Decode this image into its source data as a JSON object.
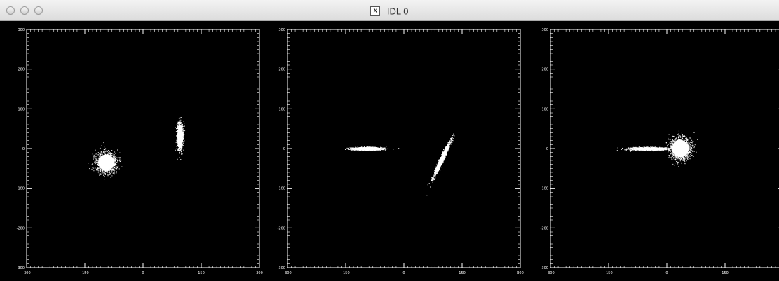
{
  "window": {
    "title": "IDL 0",
    "title_icon": "x11-icon",
    "title_icon_glyph": "X",
    "buttons": [
      "close",
      "minimize",
      "zoom"
    ]
  },
  "colors": {
    "background": "#000000",
    "foreground": "#ffffff",
    "titlebar": "#e6e6e6"
  },
  "chart_data": [
    {
      "type": "scatter",
      "xlim": [
        -300,
        300
      ],
      "ylim": [
        -300,
        300
      ],
      "xticks": [
        -300,
        -150,
        0,
        150,
        300
      ],
      "yticks": [
        -300,
        -200,
        -100,
        0,
        100,
        200,
        300
      ],
      "clusters": [
        {
          "shape": "round blob",
          "center": [
            -95,
            -35
          ],
          "radius": [
            28,
            28
          ],
          "angle": 0
        },
        {
          "shape": "vertical elongated",
          "center": [
            95,
            30
          ],
          "radius": [
            8,
            35
          ],
          "angle": 0
        }
      ]
    },
    {
      "type": "scatter",
      "xlim": [
        -300,
        300
      ],
      "ylim": [
        -300,
        300
      ],
      "xticks": [
        -300,
        -150,
        0,
        150,
        300
      ],
      "yticks": [
        -300,
        -200,
        -100,
        0,
        100,
        200,
        300
      ],
      "clusters": [
        {
          "shape": "horizontal streak",
          "center": [
            -95,
            0
          ],
          "radius": [
            42,
            4
          ],
          "angle": 0
        },
        {
          "shape": "tilted streak",
          "center": [
            98,
            -25
          ],
          "radius": [
            5,
            52
          ],
          "angle": 25
        }
      ]
    },
    {
      "type": "scatter",
      "xlim": [
        -300,
        300
      ],
      "ylim": [
        -300,
        300
      ],
      "xticks": [
        -300,
        -150,
        0,
        150,
        300
      ],
      "yticks": [
        -300,
        -200,
        -100,
        0,
        100,
        200,
        300
      ],
      "clusters": [
        {
          "shape": "horizontal streak",
          "center": [
            -45,
            0
          ],
          "radius": [
            55,
            4
          ],
          "angle": 0
        },
        {
          "shape": "round blob",
          "center": [
            35,
            0
          ],
          "radius": [
            30,
            30
          ],
          "angle": 0
        }
      ]
    }
  ]
}
